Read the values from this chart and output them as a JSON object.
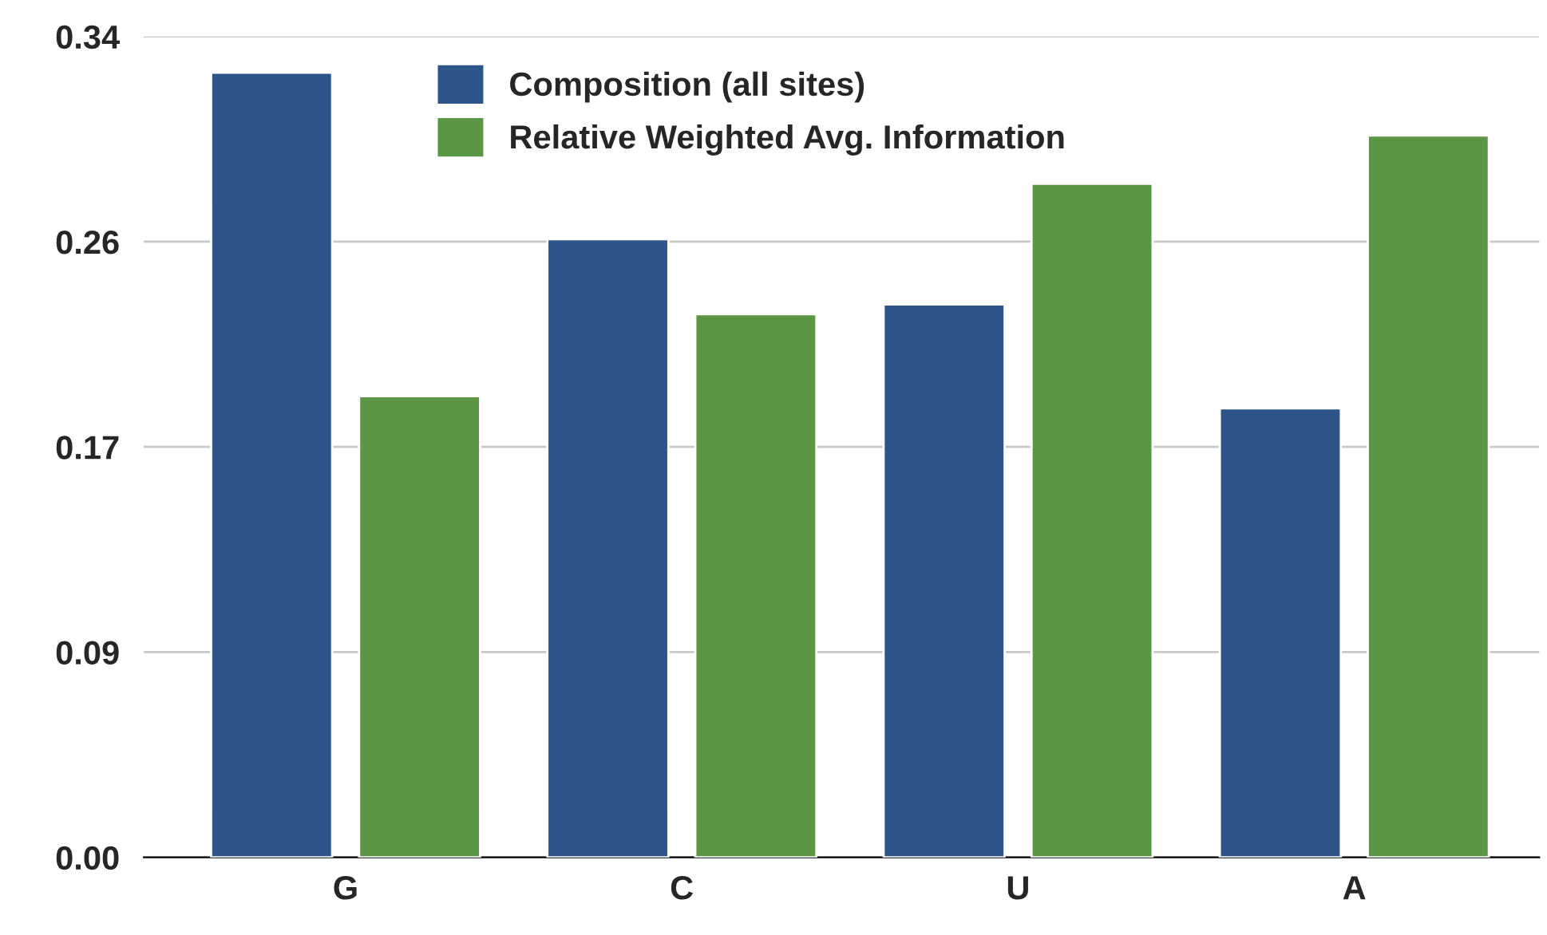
{
  "chart_data": {
    "type": "bar",
    "categories": [
      "G",
      "C",
      "U",
      "A"
    ],
    "series": [
      {
        "name": "Composition (all sites)",
        "color": "#2d5589",
        "values": [
          0.325,
          0.256,
          0.229,
          0.186
        ]
      },
      {
        "name": "Relative Weighted Avg. Information",
        "color": "#5b9645",
        "values": [
          0.191,
          0.225,
          0.279,
          0.299
        ]
      }
    ],
    "ylim": [
      0,
      0.34
    ],
    "yticks": [
      {
        "value": 0,
        "label": "0.00"
      },
      {
        "value": 0.085,
        "label": "0.09"
      },
      {
        "value": 0.17,
        "label": "0.17"
      },
      {
        "value": 0.255,
        "label": "0.26"
      },
      {
        "value": 0.34,
        "label": "0.34"
      }
    ],
    "grid": "y",
    "legend": "top"
  }
}
